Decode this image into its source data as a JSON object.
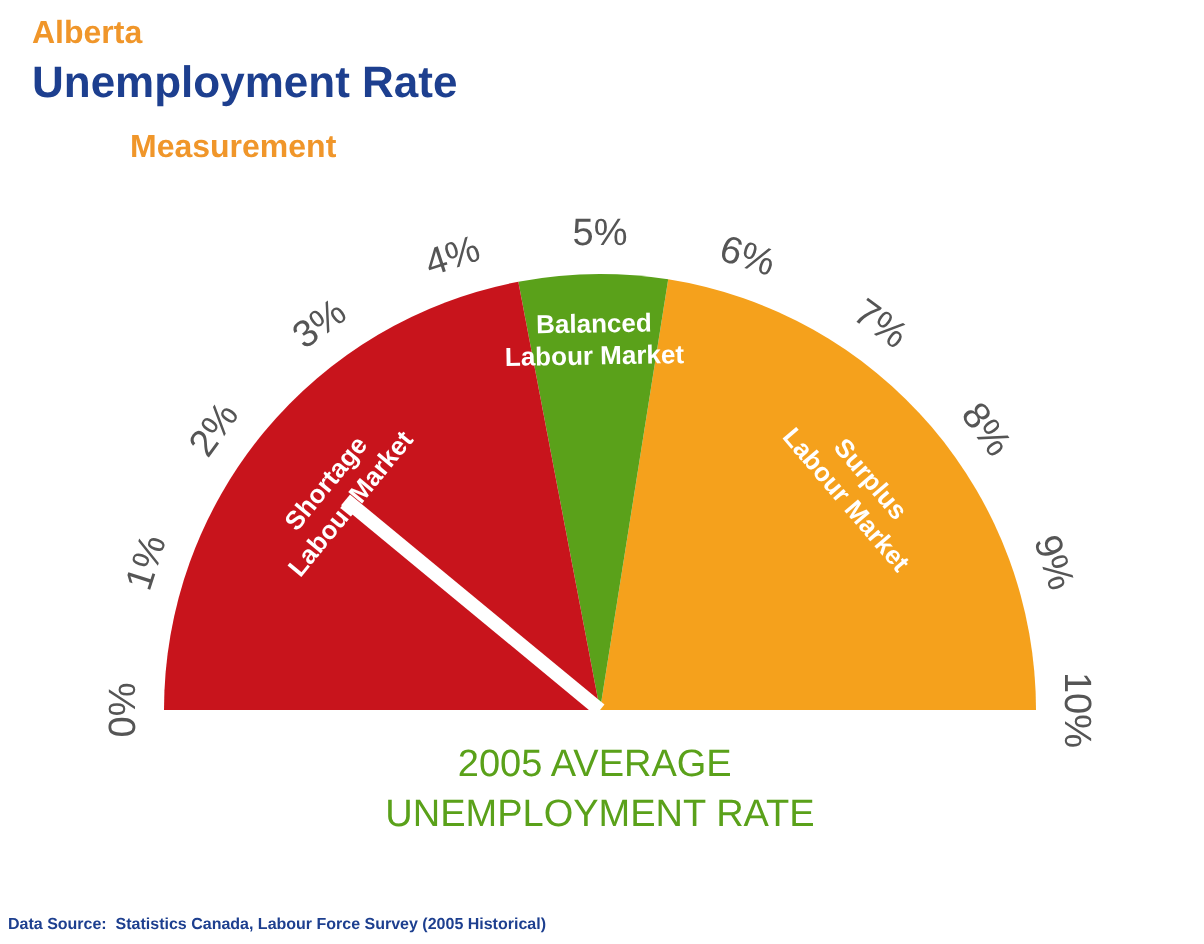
{
  "chart_data": {
    "type": "pie",
    "title": "Unemployment Rate",
    "subtitle": "Measurement",
    "annotations": [
      "Alberta",
      "2005 AVERAGE UNEMPLOYMENT RATE",
      "Data Source:  Statistics Canada, Labour Force Survey (2005 Historical)",
      "0%",
      "1%",
      "2%",
      "3%",
      "4%",
      "5%",
      "6%",
      "7%",
      "8%",
      "9%",
      "10%"
    ],
    "categories": [
      "Shortage Labour Market",
      "Balanced Labour Market",
      "Surplus Labour Market"
    ],
    "values": [
      44,
      11,
      45
    ],
    "colors": [
      "#c8141c",
      "#5aa11a",
      "#f5a11c"
    ],
    "needle": "Shortage Labour Market"
  }
}
